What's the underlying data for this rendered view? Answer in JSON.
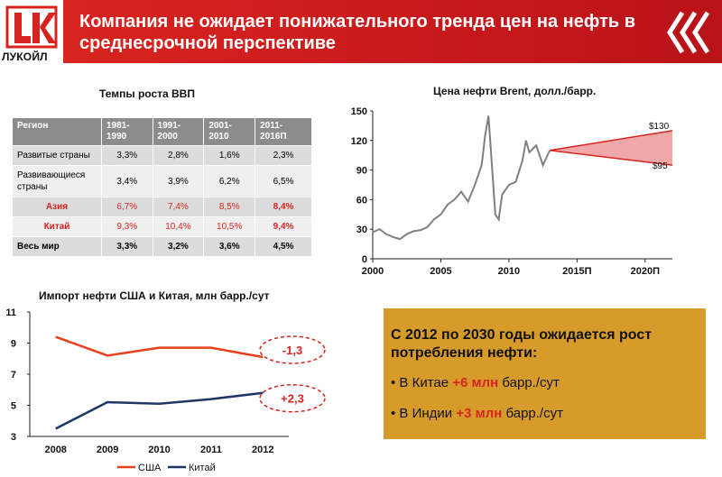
{
  "logo": {
    "text": "ЛУКОЙЛ"
  },
  "header": {
    "title": "Компания не ожидает понижательного тренда цен на нефть в среднесрочной перспективе"
  },
  "gdp": {
    "title": "Темпы роста ВВП",
    "columns": [
      "Регион",
      "1981-1990",
      "1991-2000",
      "2001-2010",
      "2011-2016П"
    ],
    "rows": [
      {
        "region": "Развитые страны",
        "values": [
          "3,3%",
          "2,8%",
          "1,6%",
          "2,3%"
        ]
      },
      {
        "region": "Развивающиеся страны",
        "values": [
          "3,4%",
          "3,9%",
          "6,2%",
          "6,5%"
        ]
      },
      {
        "region": "Азия",
        "values": [
          "6,7%",
          "7,4%",
          "8,5%",
          "8,4%"
        ]
      },
      {
        "region": "Китай",
        "values": [
          "9,3%",
          "10,4%",
          "10,5%",
          "9,4%"
        ]
      },
      {
        "region": "Весь мир",
        "values": [
          "3,3%",
          "3,2%",
          "3,6%",
          "4,5%"
        ]
      }
    ]
  },
  "chart_data": [
    {
      "type": "line",
      "title": "Цена нефти Brent, долл./барр.",
      "x_tick_labels": [
        "2000",
        "2005",
        "2010",
        "2015П",
        "2020П"
      ],
      "y_ticks": [
        0,
        30,
        60,
        90,
        120,
        150
      ],
      "ylim": [
        0,
        150
      ],
      "xlim": [
        2000,
        2022
      ],
      "series": [
        {
          "x": [
            2000,
            2000.5,
            2001,
            2001.5,
            2002,
            2002.5,
            2003,
            2003.5,
            2004,
            2004.5,
            2005,
            2005.5,
            2006,
            2006.5,
            2007,
            2007.5,
            2008,
            2008.25,
            2008.5,
            2008.75,
            2009,
            2009.25,
            2009.5,
            2010,
            2010.5,
            2011,
            2011.25,
            2011.5,
            2012,
            2012.5,
            2013
          ],
          "y": [
            27,
            30,
            25,
            22,
            20,
            25,
            28,
            29,
            32,
            40,
            45,
            55,
            60,
            68,
            58,
            75,
            95,
            125,
            145,
            95,
            45,
            40,
            65,
            75,
            78,
            100,
            120,
            108,
            115,
            95,
            110
          ]
        }
      ],
      "forecast": {
        "from": 2013,
        "to": 2022,
        "start": 110,
        "high": 130,
        "low": 95,
        "labels": [
          "$130",
          "$95"
        ]
      }
    },
    {
      "type": "line",
      "title": "Импорт нефти США и Китая, млн барр./сут",
      "categories": [
        "2008",
        "2009",
        "2010",
        "2011",
        "2012"
      ],
      "y_ticks": [
        3,
        5,
        7,
        9,
        11
      ],
      "ylim": [
        3,
        11
      ],
      "series": [
        {
          "name": "США",
          "color": "#e8401c",
          "values": [
            9.4,
            8.2,
            8.7,
            8.7,
            8.1
          ]
        },
        {
          "name": "Китай",
          "color": "#1f3566",
          "values": [
            3.5,
            5.2,
            5.1,
            5.4,
            5.8
          ]
        }
      ],
      "annotations": [
        "-1,3",
        "+2,3"
      ]
    }
  ],
  "callout": {
    "title": "С 2012 по 2030 годы ожидается рост потребления нефти:",
    "bullets": [
      {
        "prefix": "• В Китае ",
        "highlight": "+6 млн",
        "suffix": " барр./сут"
      },
      {
        "prefix": "• В Индии ",
        "highlight": "+3  млн",
        "suffix": " барр./сут"
      }
    ]
  },
  "colors": {
    "accent": "#d8241f",
    "box": "#d79b2b",
    "table_header": "#8c8c8c"
  }
}
